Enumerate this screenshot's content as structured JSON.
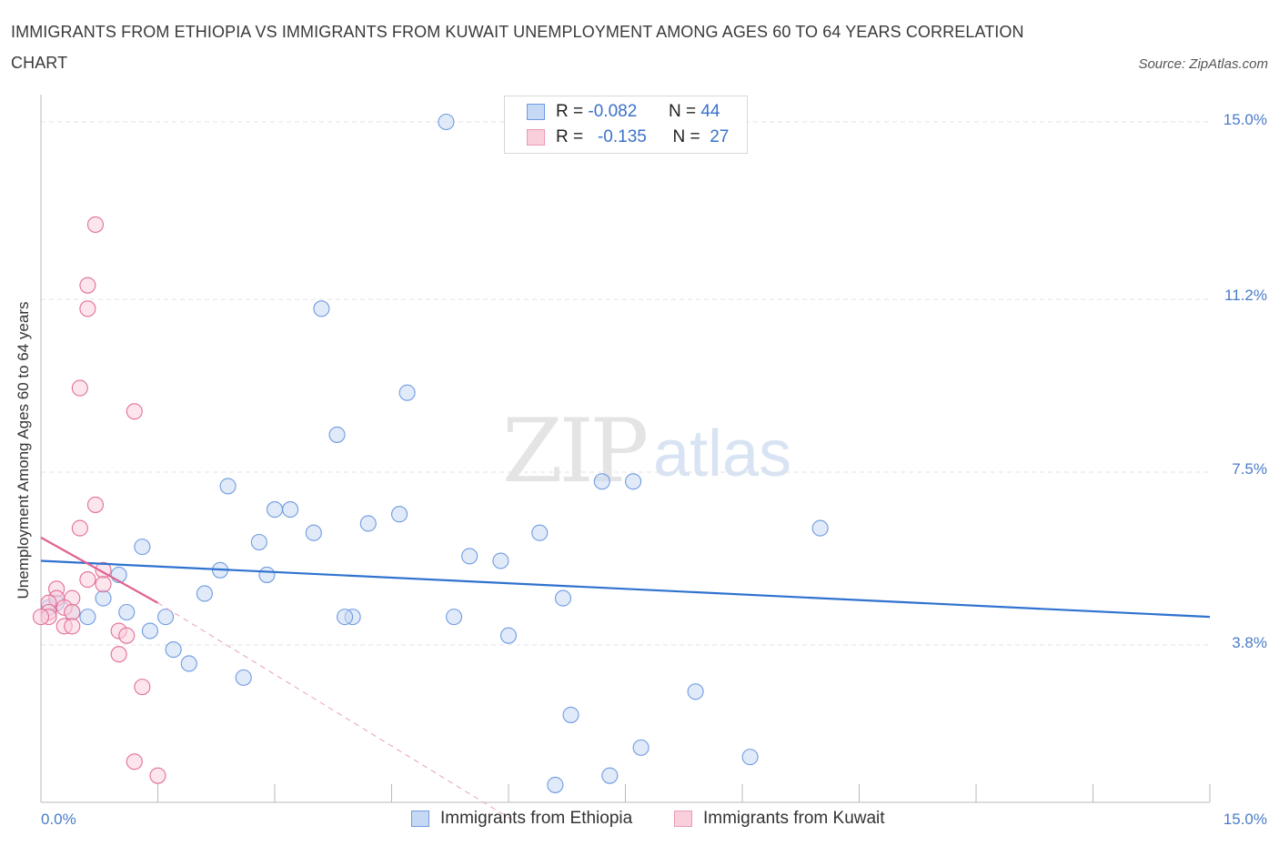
{
  "chart_data": {
    "type": "scatter",
    "title": "IMMIGRANTS FROM ETHIOPIA VS IMMIGRANTS FROM KUWAIT UNEMPLOYMENT AMONG AGES 60 TO 64 YEARS CORRELATION CHART",
    "source": "Source: ZipAtlas.com",
    "ylabel": "Unemployment Among Ages 60 to 64 years",
    "xlabel": "",
    "xlim": [
      0,
      15
    ],
    "ylim": [
      0,
      15.3
    ],
    "y_ticks": [
      {
        "value": 15.0,
        "label": "15.0%"
      },
      {
        "value": 11.2,
        "label": "11.2%"
      },
      {
        "value": 7.5,
        "label": "7.5%"
      },
      {
        "value": 3.8,
        "label": "3.8%"
      }
    ],
    "x_tick_labels": {
      "min": "0.0%",
      "max": "15.0%"
    },
    "watermark": {
      "zip": "ZIP",
      "atlas": "atlas"
    },
    "legend": {
      "r_label": "R =",
      "n_label": "N =",
      "series": [
        {
          "name": "Immigrants from Ethiopia",
          "r": "-0.082",
          "n": "44"
        },
        {
          "name": "Immigrants from Kuwait",
          "r": "-0.135",
          "n": "27"
        }
      ]
    },
    "series": [
      {
        "name": "Immigrants from Ethiopia",
        "color": "#6f9be0",
        "fill": "#c6d9f4",
        "trend": {
          "x0": 0.0,
          "y0": 5.6,
          "x1": 15.0,
          "y1": 4.4
        },
        "points": [
          [
            5.2,
            15.0
          ],
          [
            3.6,
            11.0
          ],
          [
            4.7,
            9.2
          ],
          [
            3.8,
            8.3
          ],
          [
            2.4,
            7.2
          ],
          [
            7.2,
            7.3
          ],
          [
            7.6,
            7.3
          ],
          [
            10.0,
            6.3
          ],
          [
            3.2,
            6.7
          ],
          [
            3.0,
            6.7
          ],
          [
            4.6,
            6.6
          ],
          [
            4.2,
            6.4
          ],
          [
            3.5,
            6.2
          ],
          [
            6.4,
            6.2
          ],
          [
            2.8,
            6.0
          ],
          [
            1.3,
            5.9
          ],
          [
            5.5,
            5.7
          ],
          [
            5.9,
            5.6
          ],
          [
            2.3,
            5.4
          ],
          [
            1.0,
            5.3
          ],
          [
            2.9,
            5.3
          ],
          [
            2.1,
            4.9
          ],
          [
            0.8,
            4.8
          ],
          [
            6.7,
            4.8
          ],
          [
            0.2,
            4.7
          ],
          [
            0.1,
            4.6
          ],
          [
            0.4,
            4.5
          ],
          [
            1.1,
            4.5
          ],
          [
            0.6,
            4.4
          ],
          [
            1.6,
            4.4
          ],
          [
            4.0,
            4.4
          ],
          [
            3.9,
            4.4
          ],
          [
            5.3,
            4.4
          ],
          [
            1.4,
            4.1
          ],
          [
            6.0,
            4.0
          ],
          [
            1.7,
            3.7
          ],
          [
            1.9,
            3.4
          ],
          [
            2.6,
            3.1
          ],
          [
            8.4,
            2.8
          ],
          [
            6.8,
            2.3
          ],
          [
            7.7,
            1.6
          ],
          [
            9.1,
            1.4
          ],
          [
            7.3,
            1.0
          ],
          [
            6.6,
            0.8
          ]
        ]
      },
      {
        "name": "Immigrants from Kuwait",
        "color": "#e36f98",
        "fill": "#f9cfdc",
        "trend": {
          "x0": 0.0,
          "y0": 6.1,
          "x1": 1.5,
          "y1": 4.7
        },
        "trend_ext": {
          "x0": 1.5,
          "y0": 4.7,
          "x1": 6.1,
          "y1": 0.0
        },
        "points": [
          [
            0.7,
            12.8
          ],
          [
            0.6,
            11.5
          ],
          [
            0.6,
            11.0
          ],
          [
            0.5,
            9.3
          ],
          [
            1.2,
            8.8
          ],
          [
            0.7,
            6.8
          ],
          [
            0.5,
            6.3
          ],
          [
            0.8,
            5.4
          ],
          [
            0.6,
            5.2
          ],
          [
            0.8,
            5.1
          ],
          [
            0.2,
            5.0
          ],
          [
            0.4,
            4.8
          ],
          [
            0.2,
            4.8
          ],
          [
            0.1,
            4.7
          ],
          [
            0.3,
            4.6
          ],
          [
            0.1,
            4.5
          ],
          [
            0.4,
            4.5
          ],
          [
            0.1,
            4.4
          ],
          [
            0.3,
            4.2
          ],
          [
            0.4,
            4.2
          ],
          [
            1.0,
            4.1
          ],
          [
            1.1,
            4.0
          ],
          [
            1.0,
            3.6
          ],
          [
            1.3,
            2.9
          ],
          [
            1.2,
            1.3
          ],
          [
            1.5,
            1.0
          ],
          [
            0.0,
            4.4
          ]
        ]
      }
    ]
  }
}
